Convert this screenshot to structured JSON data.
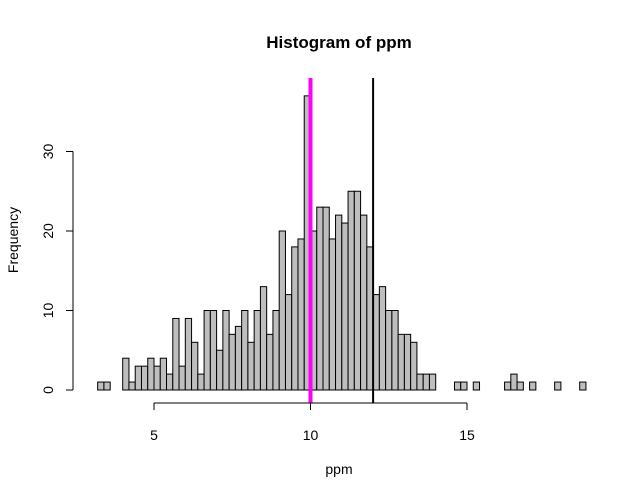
{
  "chart_data": {
    "type": "bar",
    "title": "Histogram of ppm",
    "xlabel": "ppm",
    "ylabel": "Frequency",
    "xlim": [
      3.0,
      18.7
    ],
    "ylim": [
      0,
      38
    ],
    "bin_width": 0.2,
    "bins_start": 3.2,
    "counts": [
      1,
      1,
      0,
      0,
      4,
      1,
      3,
      3,
      4,
      3,
      4,
      2,
      9,
      3,
      9,
      6,
      2,
      10,
      10,
      5,
      10,
      7,
      8,
      10,
      6,
      10,
      13,
      7,
      10,
      20,
      12,
      18,
      19,
      37,
      20,
      23,
      23,
      19,
      22,
      21,
      25,
      25,
      22,
      18,
      12,
      13,
      10,
      10,
      7,
      7,
      6,
      2,
      2,
      2,
      0,
      0,
      0,
      1,
      1,
      0,
      1,
      0,
      0,
      0,
      0,
      1,
      2,
      1,
      0,
      1,
      0,
      0,
      0,
      1,
      0,
      0,
      0,
      1
    ],
    "x_ticks": [
      5,
      10,
      15
    ],
    "y_ticks": [
      0,
      10,
      20,
      30
    ],
    "vlines": [
      {
        "x": 10.0,
        "color": "#ff00ff",
        "width": 4
      },
      {
        "x": 12.0,
        "color": "#000000",
        "width": 2
      }
    ],
    "bar_color": "#bebebe",
    "grid": false,
    "legend": "none"
  }
}
